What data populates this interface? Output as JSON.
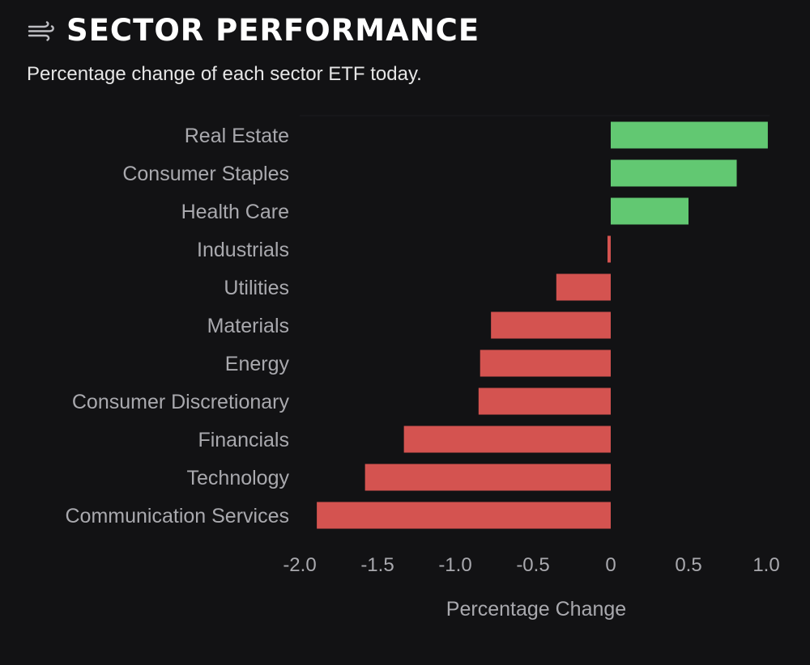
{
  "header": {
    "icon": "wind-icon",
    "title": "SECTOR PERFORMANCE",
    "subtitle": "Percentage change of each sector ETF today."
  },
  "colors": {
    "background": "#121214",
    "positive": "#62c872",
    "negative": "#d45350",
    "label": "#a9a9ae",
    "title": "#ffffff"
  },
  "chart_data": {
    "type": "bar",
    "orientation": "horizontal",
    "title": "SECTOR PERFORMANCE",
    "subtitle": "Percentage change of each sector ETF today.",
    "xlabel": "Percentage Change",
    "ylabel": "",
    "xlim": [
      -2.0,
      1.0
    ],
    "xticks": [
      -2.0,
      -1.5,
      -1.0,
      -0.5,
      0,
      0.5,
      1.0
    ],
    "xtick_labels": [
      "-2.0",
      "-1.5",
      "-1.0",
      "-0.5",
      "0",
      "0.5",
      "1.0"
    ],
    "grid": false,
    "legend": "none",
    "categories": [
      "Real Estate",
      "Consumer Staples",
      "Health Care",
      "Industrials",
      "Utilities",
      "Materials",
      "Energy",
      "Consumer Discretionary",
      "Financials",
      "Technology",
      "Communication Services"
    ],
    "values": [
      1.01,
      0.81,
      0.5,
      -0.02,
      -0.35,
      -0.77,
      -0.84,
      -0.85,
      -1.33,
      -1.58,
      -1.89
    ]
  }
}
